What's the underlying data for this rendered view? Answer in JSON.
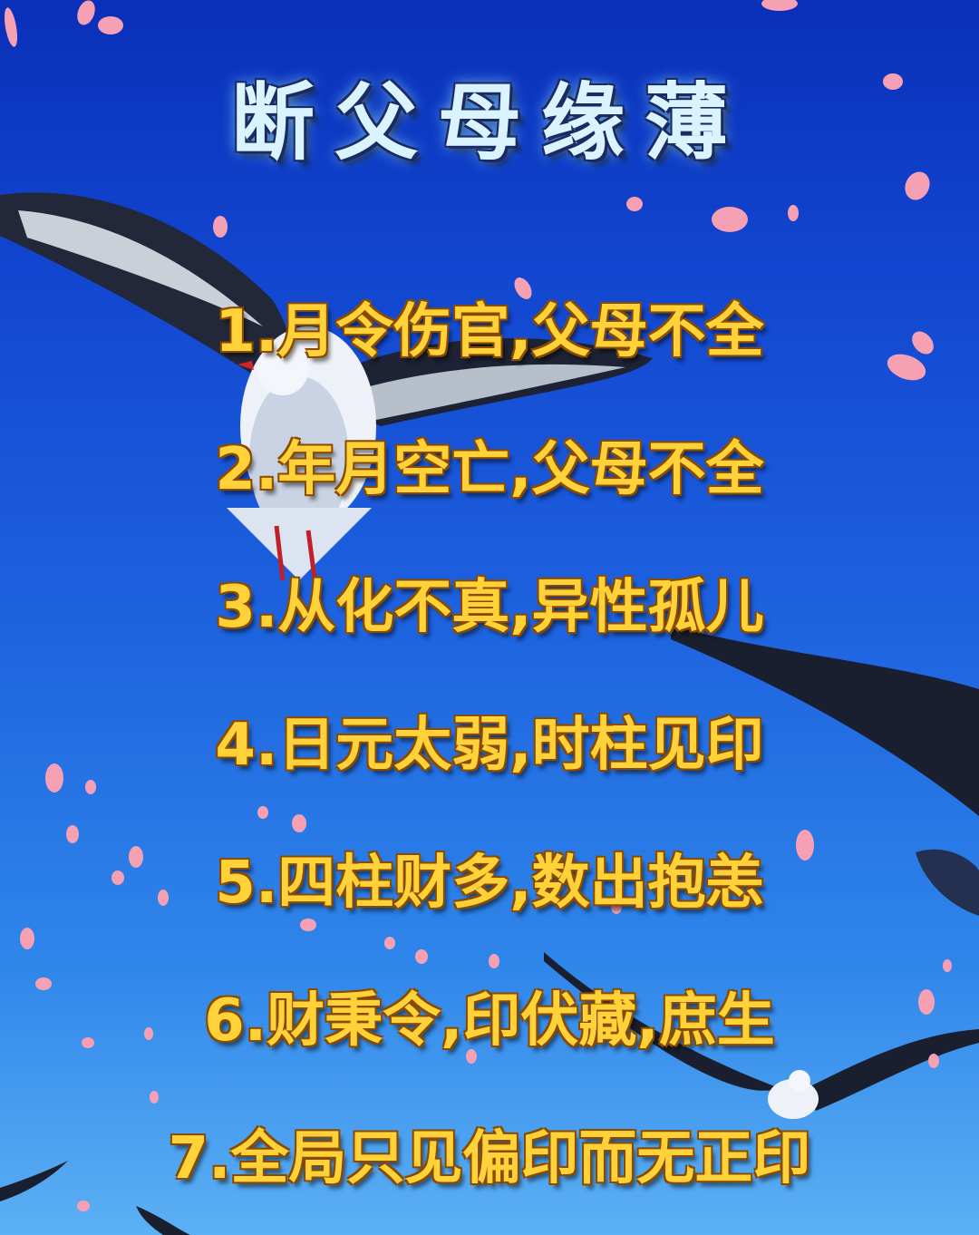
{
  "title": "断父母缘薄",
  "items": [
    "1.月令伤官,父母不全",
    "2.年月空亡,父母不全",
    "3.从化不真,异性孤儿",
    "4.日元太弱,时柱见印",
    "5.四柱财多,数出抱恙",
    "6.财秉令,印伏藏,庶生",
    "7.全局只见偏印而无正印"
  ],
  "colors": {
    "sky_top": "#0a2fb8",
    "sky_bottom": "#5cb0f4",
    "title_text": "#d9f4ff",
    "item_text": "#ffd23a",
    "petal": "#f6a0b4"
  }
}
